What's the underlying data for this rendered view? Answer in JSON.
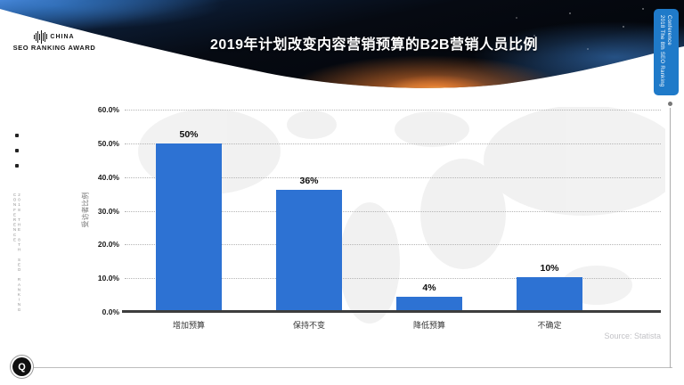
{
  "header": {
    "logo": {
      "line1": "CHINA",
      "line2": "SEO RANKING AWARD"
    },
    "title": "2019年计划改变内容营销预算的B2B营销人员比例",
    "side_tab": {
      "line1": "2018 The 8th SEO Ranking",
      "line2": "Conference"
    }
  },
  "left_rail": {
    "vertical_text": "2018 THE 8TH SEO RANKING CONFERENCE"
  },
  "chart_data": {
    "type": "bar",
    "title": "2019年计划改变内容营销预算的B2B营销人员比例",
    "categories": [
      "增加预算",
      "保持不变",
      "降低预算",
      "不确定"
    ],
    "values": [
      50,
      36,
      4,
      10
    ],
    "value_labels": [
      "50%",
      "36%",
      "4%",
      "10%"
    ],
    "ylabel": "受访者比例",
    "xlabel": "",
    "ylim": [
      0,
      60
    ],
    "ytick_labels": [
      "60.0%",
      "50.0%",
      "40.0%",
      "30.0%",
      "20.0%",
      "10.0%",
      "0.0%"
    ],
    "grid": "horizontal-dotted",
    "legend": "none",
    "bar_color": "#2d72d3"
  },
  "footer": {
    "source": "Source: Statista",
    "logo_glyph": "Q"
  },
  "colors": {
    "bar_blue": "#2d72d3",
    "tab_blue": "#1f7ac9",
    "sun_orange": "#ef7c2e",
    "axis_dark": "#3d3d3d"
  }
}
